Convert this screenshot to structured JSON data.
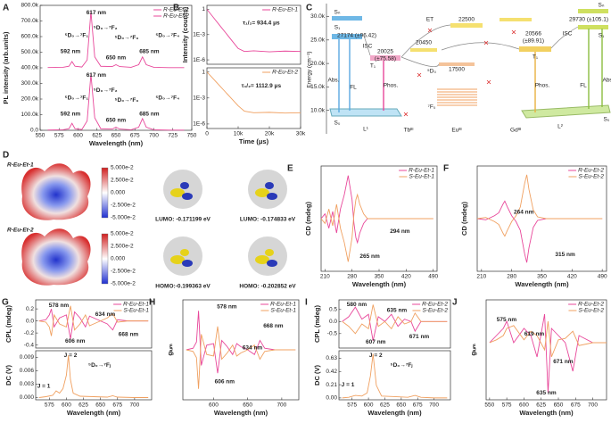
{
  "chart_data": [
    {
      "panel": "A",
      "type": "line",
      "xlabel": "Wavelength (nm)",
      "ylabel": "PL intensity (arb.units)",
      "xlim": [
        550,
        750
      ],
      "xticks": [
        550,
        575,
        600,
        625,
        650,
        675,
        700,
        725,
        750
      ],
      "ylim": [
        0,
        800000
      ],
      "yticks": [
        {
          "value": 0,
          "label": "0.0"
        },
        {
          "value": 100000,
          "label": "100.0k"
        },
        {
          "value": 200000,
          "label": "200.0k"
        },
        {
          "value": 300000,
          "label": "300.0k"
        },
        {
          "value": 400000,
          "label": "400.0k"
        },
        {
          "value": 500000,
          "label": "500.0k"
        },
        {
          "value": 600000,
          "label": "600.0k"
        },
        {
          "value": 700000,
          "label": "700.0k"
        },
        {
          "value": 800000,
          "label": "800.0k"
        }
      ],
      "x": [
        560,
        580,
        588,
        592,
        596,
        605,
        612,
        617,
        622,
        630,
        645,
        650,
        655,
        670,
        680,
        685,
        690,
        700,
        720,
        740
      ],
      "series": [
        {
          "name": "R-Eu-Et-1",
          "color": "#e8479a",
          "values": [
            402000,
            403000,
            410000,
            440000,
            410000,
            405000,
            450000,
            760000,
            470000,
            410000,
            408000,
            420000,
            408000,
            403000,
            420000,
            470000,
            420000,
            403000,
            401000,
            401000
          ]
        },
        {
          "name": "R-Eu-Et-2",
          "color": "#e8479a",
          "values": [
            2000,
            3000,
            10000,
            45000,
            10000,
            5000,
            60000,
            360000,
            80000,
            10000,
            8000,
            20000,
            8000,
            3000,
            20000,
            75000,
            20000,
            3000,
            1000,
            1000
          ]
        }
      ],
      "annotations": [
        "592 nm",
        "617 nm",
        "650 nm",
        "685 nm",
        "⁵D₀→⁷F₁",
        "⁵D₀→⁷F₂",
        "⁵D₀→⁷F₃",
        "⁵D₀→⁷F₄",
        "592 nm",
        "617 nm",
        "650 nm",
        "685 nm",
        "⁵D₀→⁷F₁",
        "⁵D₀→⁷F₂",
        "⁵D₀→⁷F₃",
        "⁵D₀→⁷F₄"
      ]
    },
    {
      "panel": "B",
      "type": "line",
      "ylabel": "Intensity (counts)",
      "log": true,
      "xlim": [
        0,
        30000
      ],
      "ylim": [
        3e-07,
        3
      ],
      "yticks": [
        1,
        {
          "value": 0.001,
          "label": "1E-3"
        },
        {
          "value": 1e-06,
          "label": "1E-6"
        }
      ],
      "x": [
        0,
        1000,
        2000,
        4000,
        6000,
        8000,
        10000,
        12000,
        15000,
        20000,
        25000,
        30000
      ],
      "series": [
        {
          "name": "R-Eu-Et-1",
          "color": "#e8479a",
          "values": [
            1,
            0.343,
            0.118,
            0.0138,
            0.00163,
            0.000192,
            2.25e-05,
            1e-05,
            1.2e-05,
            9e-06,
            1.1e-05,
            1e-05
          ]
        }
      ],
      "annotations": [
        "τ₁/₂= 934.4 μs"
      ]
    },
    {
      "type": "line",
      "xlabel": "Time (μs)",
      "log": true,
      "xlim": [
        0,
        30000
      ],
      "xticks": [
        0,
        {
          "value": 10000,
          "label": "10k"
        },
        {
          "value": 20000,
          "label": "20k"
        },
        {
          "value": 30000,
          "label": "30k"
        }
      ],
      "ylim": [
        3e-07,
        3
      ],
      "yticks": [
        1,
        {
          "value": 0.001,
          "label": "1E-3"
        },
        {
          "value": 1e-06,
          "label": "1E-6"
        }
      ],
      "x": [
        0,
        1000,
        2000,
        4000,
        6000,
        8000,
        10000,
        12000,
        15000,
        20000,
        25000,
        30000
      ],
      "series": [
        {
          "name": "R-Eu-Et-2",
          "color": "#f0a060",
          "values": [
            1,
            0.407,
            0.166,
            0.0275,
            0.00456,
            0.000756,
            0.000125,
            3e-05,
            2e-05,
            2.2e-05,
            1.8e-05,
            2e-05
          ]
        }
      ],
      "annotations": [
        "τ₁/₂= 1112.9 μs"
      ]
    },
    {
      "panel": "E",
      "type": "line",
      "xlabel": "Wavelength (nm)",
      "ylabel": "CD (mdeg)",
      "xlim": [
        200,
        500
      ],
      "xticks": [
        210,
        280,
        350,
        420,
        490
      ],
      "ylim": [
        -22,
        22
      ],
      "x": [
        200,
        210,
        220,
        230,
        240,
        250,
        260,
        265,
        270,
        280,
        285,
        290,
        294,
        300,
        310,
        320,
        350,
        400,
        490
      ],
      "series": [
        {
          "name": "R-Eu-Et-1",
          "color": "#e8479a",
          "values": [
            0,
            2,
            -4,
            3,
            -6,
            4,
            10,
            14,
            18,
            8,
            -2,
            -8,
            -10,
            -6,
            -2,
            0,
            0,
            0,
            0
          ]
        },
        {
          "name": "S-Eu-Et-1",
          "color": "#f0a060",
          "values": [
            0,
            -2,
            4,
            -3,
            6,
            -4,
            -10,
            -14,
            -18,
            -8,
            2,
            8,
            10,
            6,
            2,
            0,
            0,
            0,
            0
          ]
        }
      ],
      "annotations": [
        "265 nm",
        "294 nm"
      ]
    },
    {
      "panel": "F",
      "type": "line",
      "xlabel": "Wavelength (nm)",
      "ylabel": "CD (mdeg)",
      "xlim": [
        200,
        500
      ],
      "xticks": [
        210,
        280,
        350,
        420,
        490
      ],
      "ylim": [
        -90,
        90
      ],
      "x": [
        200,
        220,
        240,
        250,
        260,
        264,
        270,
        280,
        290,
        300,
        310,
        315,
        320,
        330,
        340,
        360,
        400,
        490
      ],
      "series": [
        {
          "name": "R-Eu-Et-2",
          "color": "#e8479a",
          "values": [
            0,
            -2,
            5,
            10,
            25,
            30,
            20,
            5,
            -5,
            -20,
            -60,
            -75,
            -50,
            -15,
            -3,
            0,
            0,
            0
          ]
        },
        {
          "name": "S-Eu-Et-2",
          "color": "#f0a060",
          "values": [
            0,
            2,
            -5,
            -10,
            -25,
            -30,
            -20,
            -5,
            5,
            20,
            60,
            75,
            50,
            15,
            3,
            0,
            0,
            0
          ]
        }
      ],
      "annotations": [
        "264 nm",
        "315 nm"
      ]
    },
    {
      "panel": "G",
      "type": "line",
      "ylabel": "CPL (mdeg)",
      "xlim": [
        555,
        725
      ],
      "ylim": [
        -0.45,
        0.35
      ],
      "yticks": [
        0.2,
        {
          "value": 0,
          "label": "0.0"
        },
        -0.2,
        -0.4
      ],
      "x": [
        560,
        570,
        575,
        578,
        582,
        590,
        600,
        606,
        612,
        620,
        628,
        634,
        640,
        650,
        660,
        668,
        675,
        690,
        720
      ],
      "series": [
        {
          "name": "R-Eu-Et-1",
          "color": "#e8479a",
          "values": [
            0,
            0.02,
            0.1,
            0.2,
            -0.1,
            0.05,
            0.1,
            -0.3,
            0.15,
            0.05,
            -0.1,
            0.08,
            0.05,
            0,
            -0.05,
            -0.15,
            0.02,
            0,
            0
          ]
        },
        {
          "name": "S-Eu-Et-1",
          "color": "#f0a060",
          "values": [
            0,
            -0.02,
            -0.1,
            -0.25,
            0.1,
            -0.05,
            -0.1,
            0.25,
            -0.15,
            -0.05,
            0.1,
            -0.08,
            -0.05,
            0,
            0.05,
            0.12,
            -0.02,
            0,
            0
          ]
        }
      ],
      "annotations": [
        "578 nm",
        "606 nm",
        "634 nm",
        "668 nm"
      ]
    },
    {
      "type": "line",
      "xlabel": "Wavelength (nm)",
      "ylabel": "DC (V)",
      "xlim": [
        555,
        725
      ],
      "xticks": [
        575,
        600,
        625,
        650,
        675,
        700
      ],
      "ylim": [
        -0.0005,
        0.0105
      ],
      "yticks": [
        {
          "value": 0,
          "label": "0.000"
        },
        0.003,
        0.006,
        0.009
      ],
      "x": [
        560,
        570,
        580,
        585,
        590,
        595,
        600,
        603,
        606,
        610,
        620,
        640,
        660,
        668,
        675,
        700,
        720
      ],
      "series": [
        {
          "color": "#f0a060",
          "values": [
            0,
            0.0002,
            0.0005,
            0.0015,
            0.001,
            0.002,
            0.005,
            0.0095,
            0.004,
            0.001,
            0.0003,
            0.0002,
            0.0001,
            0.0004,
            0.0001,
            0,
            0
          ]
        }
      ],
      "annotations": [
        "J = 1",
        "J = 2",
        "⁵D₀→⁷Fⱼ"
      ]
    },
    {
      "panel": "H",
      "type": "line",
      "xlabel": "Wavelength (nm)",
      "ylabel": "gₗᵤₘ",
      "xlim": [
        555,
        725
      ],
      "xticks": [
        600,
        650,
        700
      ],
      "ylim": [
        -0.32,
        0.32
      ],
      "x": [
        560,
        570,
        575,
        578,
        582,
        590,
        600,
        606,
        612,
        620,
        628,
        634,
        640,
        650,
        660,
        668,
        675,
        690,
        720
      ],
      "series": [
        {
          "name": "R-Eu-Et-1",
          "color": "#e8479a",
          "values": [
            0,
            0.01,
            0.05,
            0.25,
            -0.1,
            0.03,
            0.04,
            -0.15,
            0.06,
            0.02,
            -0.03,
            0.04,
            0.02,
            0,
            -0.03,
            0.06,
            0.01,
            0,
            0
          ]
        },
        {
          "name": "S-Eu-Et-1",
          "color": "#f0a060",
          "values": [
            0,
            -0.01,
            -0.05,
            -0.25,
            0.1,
            -0.03,
            -0.04,
            0.15,
            -0.06,
            -0.02,
            0.03,
            -0.04,
            -0.02,
            0,
            0.03,
            -0.06,
            -0.01,
            0,
            0
          ]
        }
      ],
      "annotations": [
        "578 nm",
        "606 nm",
        "634 nm",
        "668 nm"
      ]
    },
    {
      "panel": "I",
      "type": "line",
      "ylabel": "CPL (mdeg)",
      "xlim": [
        555,
        725
      ],
      "ylim": [
        -1.1,
        0.9
      ],
      "yticks": [
        0.5,
        {
          "value": 0,
          "label": "0.0"
        },
        -0.5
      ],
      "x": [
        560,
        570,
        580,
        590,
        600,
        607,
        615,
        625,
        635,
        645,
        655,
        665,
        671,
        680,
        700,
        720
      ],
      "series": [
        {
          "name": "R-Eu-Et-2",
          "color": "#e8479a",
          "values": [
            0,
            0.2,
            0.6,
            0.1,
            0.3,
            -0.8,
            0.2,
            0,
            0.3,
            -0.2,
            0.1,
            0,
            -0.4,
            0,
            0,
            0
          ]
        },
        {
          "name": "S-Eu-Et-2",
          "color": "#f0a060",
          "values": [
            0,
            -0.2,
            -0.5,
            -0.1,
            -0.3,
            0.7,
            -0.2,
            0,
            -0.3,
            0.2,
            -0.1,
            0,
            0.35,
            0,
            0,
            0
          ]
        }
      ],
      "annotations": [
        "580 nm",
        "607 nm",
        "635 nm",
        "671 nm"
      ]
    },
    {
      "type": "line",
      "xlabel": "Wavelength (nm)",
      "ylabel": "DC (V)",
      "xlim": [
        555,
        725
      ],
      "xticks": [
        575,
        600,
        625,
        650,
        675,
        700
      ],
      "ylim": [
        -0.03,
        0.75
      ],
      "yticks": [
        {
          "value": 0,
          "label": "0.00"
        },
        0.21,
        0.42,
        0.63
      ],
      "x": [
        560,
        570,
        580,
        590,
        598,
        603,
        607,
        612,
        620,
        640,
        660,
        671,
        680,
        700,
        720
      ],
      "series": [
        {
          "color": "#f0a060",
          "values": [
            0,
            0.01,
            0.04,
            0.03,
            0.08,
            0.35,
            0.7,
            0.2,
            0.03,
            0.02,
            0.01,
            0.04,
            0.01,
            0,
            0
          ]
        }
      ],
      "annotations": [
        "J = 1",
        "J = 2",
        "⁵D₀→⁷Fⱼ"
      ]
    },
    {
      "panel": "J",
      "type": "line",
      "xlabel": "Wavelength (nm)",
      "ylabel": "gₗᵤₘ",
      "xlim": [
        545,
        720
      ],
      "xticks": [
        550,
        575,
        600,
        625,
        650,
        675,
        700
      ],
      "ylim": [
        -0.4,
        0.3
      ],
      "x": [
        550,
        560,
        570,
        575,
        585,
        600,
        610,
        619,
        630,
        635,
        640,
        650,
        660,
        671,
        680,
        700,
        720
      ],
      "series": [
        {
          "name": "R-Eu-Et-2",
          "color": "#e8479a",
          "values": [
            0,
            0.05,
            0.1,
            0.15,
            0,
            0.1,
            0.05,
            -0.1,
            0.2,
            -0.35,
            0.1,
            0.05,
            0,
            -0.2,
            0.05,
            0,
            0
          ]
        },
        {
          "name": "S-Eu-Et-2",
          "color": "#f0a060",
          "values": [
            0,
            0.02,
            0.05,
            0.1,
            0.12,
            0.02,
            0.08,
            0.05,
            -0.05,
            0.15,
            -0.1,
            0.02,
            0.03,
            0.08,
            -0.02,
            0,
            0
          ]
        }
      ],
      "annotations": [
        "575 nm",
        "619 nm",
        "671 nm",
        "635 nm"
      ]
    }
  ],
  "energy_diagram": {
    "panel": "C",
    "ylabel": "Energy (cm⁻¹)",
    "yticks": [
      {
        "value": 10000,
        "label": "10.0k"
      },
      {
        "value": 15000,
        "label": "15.0k"
      },
      {
        "value": 20000,
        "label": "20.0k"
      },
      {
        "value": 25000,
        "label": "25.0k"
      },
      {
        "value": 30000,
        "label": "30.0k"
      }
    ],
    "labels": [
      "Sₙ",
      "S₁",
      "27174 (±96.42)",
      "ISC",
      "20025",
      "(±75.58)",
      "T₁",
      "Abs.",
      "FL",
      "Phos.",
      "S₀",
      "L¹",
      "ET",
      "22500",
      "20450",
      "17500",
      "⁵D₀",
      "⁷F₀",
      "Tbᴵᴵᴵ",
      "Euᴵᴵᴵ",
      "Gdᴵᴵᴵ",
      "20566",
      "(±89.91)",
      "T₁",
      "Phos.",
      "L²",
      "29730 (±105.1)",
      "ISC",
      "Sₙ",
      "S₁",
      "FL",
      "Abs.",
      "S₀"
    ]
  },
  "molecule_panel": {
    "panel": "D",
    "molecules": [
      "R-Eu-Et-1",
      "R-Eu-Et-2"
    ],
    "colorbars": [
      [
        "5.000e-2",
        "2.500e-2",
        "0.000",
        "-2.500e-2",
        "-5.000e-2"
      ],
      [
        "5.000e-2",
        "2.500e-2",
        "0.000",
        "-2.500e-2",
        "-5.000e-2"
      ]
    ],
    "orbitals": [
      "LUMO: -0.171199 eV",
      "LUMO: -0.174833 eV",
      "HOMO:-0.199363 eV",
      "HOMO: -0.202852 eV"
    ]
  }
}
